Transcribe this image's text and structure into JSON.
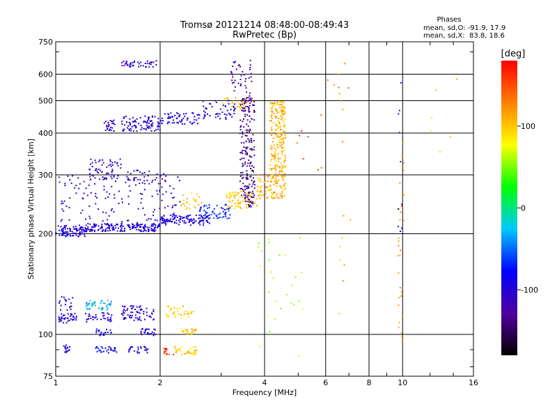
{
  "chart_data": {
    "type": "scatter",
    "title": "Tromsø 20121214 08:48:00-08:49:43",
    "subtitle": "RwPretec (Bp)",
    "xlabel": "Frequency [MHz]",
    "ylabel": "Stationary phase Virtual Height [km]",
    "xscale": "log",
    "yscale": "log",
    "xlim": [
      1,
      16
    ],
    "ylim": [
      75,
      750
    ],
    "x_ticks": [
      1,
      2,
      4,
      6,
      8,
      10,
      16
    ],
    "y_ticks": [
      75,
      100,
      200,
      300,
      400,
      500,
      600,
      750
    ],
    "grid": true,
    "stats": {
      "header": "Phases",
      "line_o": "mean, sd,O: -91.9, 17.9",
      "line_x": "mean, sd,X:  83.8, 18.6"
    },
    "colorbar": {
      "label": "[deg]",
      "min": -180,
      "max": 180,
      "ticks": [
        100,
        0,
        -100
      ],
      "colors": [
        "#000000",
        "#5000a0",
        "#0000ff",
        "#00c8ff",
        "#00ff00",
        "#ffff00",
        "#ff8000",
        "#ff0000"
      ]
    },
    "clusters": [
      {
        "f": [
          1.0,
          1.22
        ],
        "h": [
          196,
          212
        ],
        "phase": -100,
        "n": 90
      },
      {
        "f": [
          1.22,
          2.0
        ],
        "h": [
          203,
          215
        ],
        "phase": -100,
        "n": 180
      },
      {
        "f": [
          2.0,
          2.8
        ],
        "h": [
          212,
          228
        ],
        "phase": -95,
        "n": 110
      },
      {
        "f": [
          2.6,
          3.2
        ],
        "h": [
          222,
          245
        ],
        "phase": -70,
        "n": 60
      },
      {
        "f": [
          3.1,
          3.8
        ],
        "h": [
          238,
          268
        ],
        "phase": 100,
        "n": 80
      },
      {
        "f": [
          3.8,
          4.6
        ],
        "h": [
          255,
          300
        ],
        "phase": 110,
        "n": 110
      },
      {
        "f": [
          4.15,
          4.6
        ],
        "h": [
          300,
          500
        ],
        "phase": 108,
        "n": 230
      },
      {
        "f": [
          3.4,
          3.75
        ],
        "h": [
          240,
          520
        ],
        "phase": -135,
        "n": 210
      },
      {
        "f": [
          3.2,
          3.7
        ],
        "h": [
          520,
          660
        ],
        "phase": -125,
        "n": 40
      },
      {
        "f": [
          2.6,
          3.3
        ],
        "h": [
          440,
          500
        ],
        "phase": -95,
        "n": 50
      },
      {
        "f": [
          3.0,
          3.6
        ],
        "h": [
          470,
          510
        ],
        "phase": 100,
        "n": 25
      },
      {
        "f": [
          2.0,
          2.6
        ],
        "h": [
          425,
          460
        ],
        "phase": -95,
        "n": 60
      },
      {
        "f": [
          1.55,
          2.0
        ],
        "h": [
          405,
          450
        ],
        "phase": -100,
        "n": 90
      },
      {
        "f": [
          1.38,
          1.48
        ],
        "h": [
          405,
          440
        ],
        "phase": -105,
        "n": 25
      },
      {
        "f": [
          1.55,
          1.95
        ],
        "h": [
          630,
          660
        ],
        "phase": -110,
        "n": 45
      },
      {
        "f": [
          1.25,
          1.55
        ],
        "h": [
          290,
          335
        ],
        "phase": -105,
        "n": 60
      },
      {
        "f": [
          1.6,
          2.1
        ],
        "h": [
          280,
          310
        ],
        "phase": -110,
        "n": 35
      },
      {
        "f": [
          1.02,
          2.3
        ],
        "h": [
          215,
          300
        ],
        "phase": -110,
        "n": 140
      },
      {
        "f": [
          2.3,
          2.65
        ],
        "h": [
          235,
          270
        ],
        "phase": 100,
        "n": 25
      },
      {
        "f": [
          1.02,
          1.12
        ],
        "h": [
          118,
          130
        ],
        "phase": -95,
        "n": 20
      },
      {
        "f": [
          1.02,
          1.15
        ],
        "h": [
          108,
          116
        ],
        "phase": -100,
        "n": 40
      },
      {
        "f": [
          1.22,
          1.45
        ],
        "h": [
          118,
          127
        ],
        "phase": -30,
        "n": 45
      },
      {
        "f": [
          1.22,
          1.45
        ],
        "h": [
          109,
          116
        ],
        "phase": -95,
        "n": 35
      },
      {
        "f": [
          1.3,
          1.45
        ],
        "h": [
          99,
          104
        ],
        "phase": -90,
        "n": 20
      },
      {
        "f": [
          1.55,
          1.92
        ],
        "h": [
          110,
          122
        ],
        "phase": -100,
        "n": 70
      },
      {
        "f": [
          1.75,
          1.95
        ],
        "h": [
          99,
          104
        ],
        "phase": -100,
        "n": 25
      },
      {
        "f": [
          1.04,
          1.1
        ],
        "h": [
          88,
          93
        ],
        "phase": -100,
        "n": 15
      },
      {
        "f": [
          1.3,
          1.5
        ],
        "h": [
          88,
          92
        ],
        "phase": -85,
        "n": 30
      },
      {
        "f": [
          1.62,
          1.85
        ],
        "h": [
          88,
          92
        ],
        "phase": -100,
        "n": 25
      },
      {
        "f": [
          2.05,
          2.2
        ],
        "h": [
          87,
          91
        ],
        "phase": 160,
        "n": 15
      },
      {
        "f": [
          2.15,
          2.55
        ],
        "h": [
          87,
          92
        ],
        "phase": 100,
        "n": 40
      },
      {
        "f": [
          2.3,
          2.55
        ],
        "h": [
          100,
          104
        ],
        "phase": 100,
        "n": 25
      },
      {
        "f": [
          2.05,
          2.5
        ],
        "h": [
          112,
          122
        ],
        "phase": 100,
        "n": 35
      },
      {
        "f": [
          3.8,
          5.2
        ],
        "h": [
          85,
          200
        ],
        "phase": 60,
        "n": 28
      },
      {
        "f": [
          4.8,
          6.0
        ],
        "h": [
          300,
          480
        ],
        "phase": 150,
        "n": 8
      },
      {
        "f": [
          6.0,
          7.0
        ],
        "h": [
          350,
          650
        ],
        "phase": 130,
        "n": 10
      },
      {
        "f": [
          6.5,
          7.2
        ],
        "h": [
          88,
          260
        ],
        "phase": 110,
        "n": 8
      },
      {
        "f": [
          9.7,
          10.1
        ],
        "h": [
          95,
          620
        ],
        "phase": 120,
        "n": 30
      },
      {
        "f": [
          9.7,
          10.1
        ],
        "h": [
          180,
          640
        ],
        "phase": -100,
        "n": 10
      },
      {
        "f": [
          11.5,
          14.5
        ],
        "h": [
          330,
          650
        ],
        "phase": 100,
        "n": 6
      }
    ]
  }
}
